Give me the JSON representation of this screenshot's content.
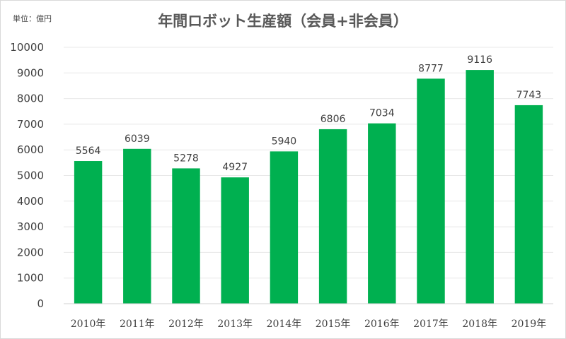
{
  "unit_label": "単位：億円",
  "chart_data": {
    "type": "bar",
    "title": "年間ロボット生産額（会員+非会員）",
    "xlabel": "",
    "ylabel": "",
    "categories": [
      "2010年",
      "2011年",
      "2012年",
      "2013年",
      "2014年",
      "2015年",
      "2016年",
      "2017年",
      "2018年",
      "2019年"
    ],
    "values": [
      5564,
      6039,
      5278,
      4927,
      5940,
      6806,
      7034,
      8777,
      9116,
      7743
    ],
    "ylim": [
      0,
      10000
    ],
    "yticks": [
      0,
      1000,
      2000,
      3000,
      4000,
      5000,
      6000,
      7000,
      8000,
      9000,
      10000
    ],
    "grid": true,
    "legend": "none",
    "bar_color": "#00b050",
    "grid_color": "#e8e8e8"
  }
}
